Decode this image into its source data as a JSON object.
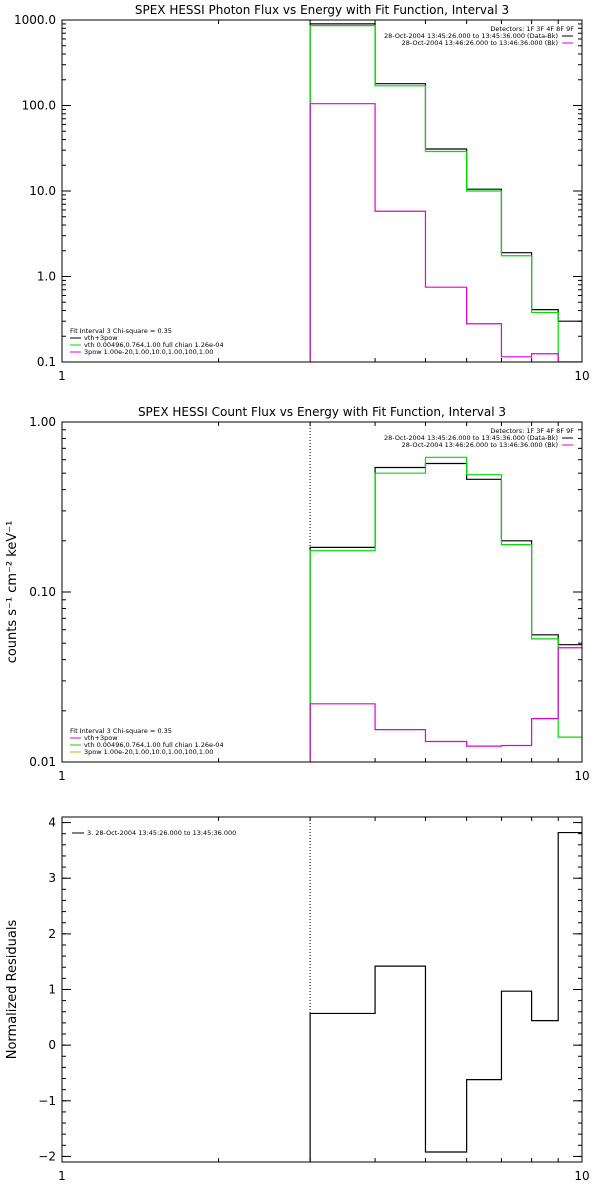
{
  "chart_data": [
    {
      "type": "line",
      "title": "SPEX HESSI Photon Flux vs Energy with Fit Function, Interval 3",
      "xlabel": "",
      "ylabel": "",
      "xscale": "log",
      "yscale": "log",
      "xlim": [
        1,
        10
      ],
      "ylim": [
        0.1,
        1000
      ],
      "x_tick_labels": [
        "1",
        "10"
      ],
      "y_tick_labels": [
        "0.1",
        "1.0",
        "10.0",
        "100.0",
        "1000.0"
      ],
      "y_tick_values": [
        0.1,
        1,
        10,
        100,
        1000
      ],
      "bin_edges": [
        3,
        3.5,
        4,
        4.5,
        5,
        5.5,
        6,
        6.5,
        7,
        7.5,
        8,
        8.5,
        9,
        9.5,
        10
      ],
      "fit_start": 3,
      "series": [
        {
          "name": "vth+3pow",
          "color": "#000000",
          "values": [
            900,
            900,
            180,
            180,
            31,
            31,
            10.5,
            10.5,
            1.9,
            1.9,
            0.41,
            0.41,
            0.3,
            0.3
          ]
        },
        {
          "name": "vth 0.00496,0.764,1.00  full chian 1.26e-04",
          "color": "#00dd00",
          "values": [
            860,
            860,
            170,
            170,
            29,
            29,
            10,
            10,
            1.75,
            1.75,
            0.38,
            0.38,
            0.1,
            0.1
          ]
        },
        {
          "name": "3pow 1.00e-20,1.00,10.0,1.00,100,1.00",
          "color": "#dd00dd",
          "values": [
            105,
            105,
            5.8,
            5.8,
            0.75,
            0.75,
            0.28,
            0.28,
            0.115,
            0.115,
            0.125,
            0.125,
            0.1,
            0.1
          ]
        }
      ],
      "legend": {
        "position": "top-right",
        "detectors": "Detectors: 1F 3F 4F 8F 9F",
        "entries": [
          {
            "label": "28-Oct-2004 13:45:26.000 to 13:45:36.000 (Data-Bk)",
            "color": "#000000"
          },
          {
            "label": "28-Oct-2004 13:46:26.000 to 13:46:36.000 (Bk)",
            "color": "#dd00dd"
          }
        ]
      },
      "fit_legend": {
        "position": "bottom-left",
        "header": "Fit Interval 3   Chi-square = 0.35",
        "entries": [
          {
            "label": "vth+3pow",
            "color": "#000000"
          },
          {
            "label": "vth 0.00496,0.764,1.00  full chian 1.26e-04",
            "color": "#00dd00"
          },
          {
            "label": "3pow 1.00e-20,1.00,10.0,1.00,100,1.00",
            "color": "#dd00dd"
          }
        ]
      }
    },
    {
      "type": "line",
      "title": "SPEX HESSI Count Flux vs Energy with Fit Function, Interval 3",
      "xlabel": "",
      "ylabel": "counts s⁻¹ cm⁻² keV⁻¹",
      "xscale": "log",
      "yscale": "log",
      "xlim": [
        1,
        10
      ],
      "ylim": [
        0.01,
        1
      ],
      "x_tick_labels": [
        "1",
        "10"
      ],
      "y_tick_labels": [
        "0.01",
        "0.10",
        "1.00"
      ],
      "y_tick_values": [
        0.01,
        0.1,
        1
      ],
      "bin_edges": [
        3,
        3.5,
        4,
        4.5,
        5,
        5.5,
        6,
        6.5,
        7,
        7.5,
        8,
        8.5,
        9,
        9.5,
        10
      ],
      "fit_start": 3,
      "series": [
        {
          "name": "Data-Bk",
          "color": "#000000",
          "values": [
            0.183,
            0.183,
            0.54,
            0.54,
            0.57,
            0.57,
            0.46,
            0.46,
            0.2,
            0.2,
            0.056,
            0.056,
            0.049,
            0.049
          ]
        },
        {
          "name": "vth 0.00496,0.764,1.00  full chian 1.26e-04",
          "color": "#00dd00",
          "values": [
            0.175,
            0.175,
            0.5,
            0.5,
            0.62,
            0.62,
            0.49,
            0.49,
            0.19,
            0.19,
            0.053,
            0.053,
            0.014,
            0.014
          ]
        },
        {
          "name": "Bk",
          "color": "#dd00dd",
          "values": [
            0.022,
            0.022,
            0.0155,
            0.0155,
            0.0132,
            0.0132,
            0.0124,
            0.0124,
            0.0125,
            0.0125,
            0.018,
            0.018,
            0.047,
            0.047
          ]
        }
      ],
      "legend": {
        "position": "top-right",
        "detectors": "Detectors: 1F 3F 4F 8F 9F",
        "entries": [
          {
            "label": "28-Oct-2004 13:45:26.000 to 13:45:36.000 (Data-Bk)",
            "color": "#000000"
          },
          {
            "label": "28-Oct-2004 13:46:26.000 to 13:46:36.000 (Bk)",
            "color": "#dd00dd"
          }
        ]
      },
      "fit_legend": {
        "position": "bottom-left",
        "header": "Fit Interval 3   Chi-square = 0.35",
        "entries": [
          {
            "label": "vth+3pow",
            "color": "#dd00dd"
          },
          {
            "label": "vth 0.00496,0.764,1.00  full chian 1.26e-04",
            "color": "#00dd00"
          },
          {
            "label": "3pow 1.00e-20,1.00,10.0,1.00,100,1.00",
            "color": "#ddaa00"
          }
        ]
      }
    },
    {
      "type": "line",
      "title": "",
      "xlabel": "",
      "ylabel": "Normalized Residuals",
      "xscale": "log",
      "yscale": "linear",
      "xlim": [
        1,
        10
      ],
      "ylim": [
        -2.1,
        4.1
      ],
      "x_tick_labels": [
        "1",
        "10"
      ],
      "y_tick_labels": [
        "−2",
        "−1",
        "0",
        "1",
        "2",
        "3",
        "4"
      ],
      "y_tick_values": [
        -2,
        -1,
        0,
        1,
        2,
        3,
        4
      ],
      "bin_edges": [
        3,
        3.5,
        4,
        4.5,
        5,
        5.5,
        6,
        6.5,
        7,
        7.5,
        8,
        8.5,
        9,
        9.5,
        10
      ],
      "fit_start": 3,
      "series": [
        {
          "name": "3. 28-Oct-2004 13:45:26.000 to 13:45:36.000",
          "color": "#000000",
          "values": [
            0.57,
            0.57,
            1.42,
            1.42,
            -1.92,
            -1.92,
            -0.62,
            -0.62,
            0.97,
            0.97,
            0.44,
            0.44,
            3.82,
            3.82
          ]
        }
      ],
      "legend": {
        "position": "top-left",
        "entries": [
          {
            "label": "3. 28-Oct-2004 13:45:26.000 to 13:45:36.000",
            "color": "#000000"
          }
        ]
      }
    }
  ]
}
